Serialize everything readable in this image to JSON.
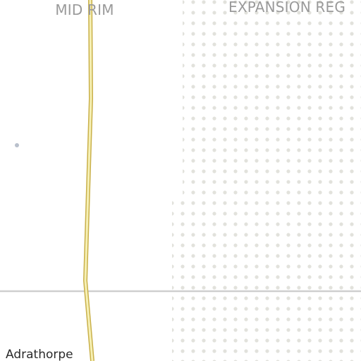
{
  "map": {
    "regions": [
      {
        "id": "mid-rim",
        "label": "MID RIM"
      },
      {
        "id": "expansion-region",
        "label": "EXPANSION REG"
      }
    ],
    "places": [
      {
        "id": "adrathorpe",
        "label": "Adrathorpe"
      }
    ],
    "colors": {
      "background": "#ffffff",
      "grid_line": "#cfcfcf",
      "hyperlane_outer": "#c9b04a",
      "hyperlane_inner": "#f6f0b4",
      "region_dots": "#e2e2dc",
      "system_dot": "#b9c0cc",
      "region_label": "#9a9a9a",
      "place_label": "#2a2a2a"
    }
  }
}
